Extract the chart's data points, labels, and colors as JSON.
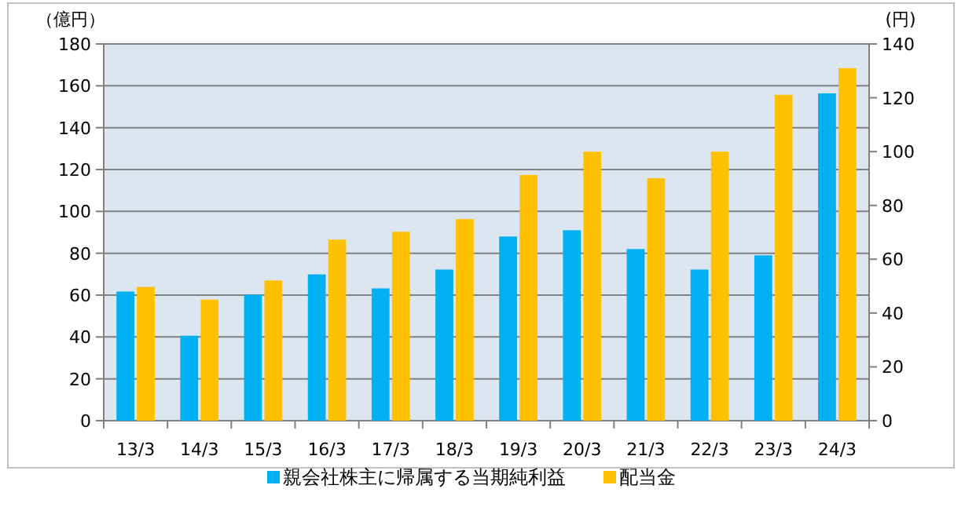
{
  "chart_data": {
    "type": "bar",
    "ylabel": "（億円）",
    "y2label": "(円)",
    "categories": [
      "13/3",
      "14/3",
      "15/3",
      "16/3",
      "17/3",
      "18/3",
      "19/3",
      "20/3",
      "21/3",
      "22/3",
      "23/3",
      "24/3"
    ],
    "series": [
      {
        "name": "親会社株主に帰属する当期純利益",
        "color": "#00b0f0",
        "values": [
          61.7,
          40.6,
          60.2,
          69.9,
          63.2,
          72.2,
          88.0,
          91.0,
          82.0,
          72.2,
          79.0,
          156.4
        ]
      },
      {
        "name": "配当金",
        "color": "#ffc000",
        "axis": "y2",
        "values": [
          49.7,
          45.0,
          52.1,
          67.3,
          70.2,
          74.9,
          91.3,
          100.0,
          90.1,
          100.0,
          121.1,
          131.0
        ]
      }
    ],
    "ylim": [
      0,
      180
    ],
    "yticks": [
      0,
      20,
      40,
      60,
      80,
      100,
      120,
      140,
      160,
      180
    ],
    "y2lim": [
      0,
      140
    ],
    "y2ticks": [
      0,
      20,
      40,
      60,
      80,
      100,
      120,
      140
    ],
    "grid": "y",
    "legend": "bottom"
  }
}
